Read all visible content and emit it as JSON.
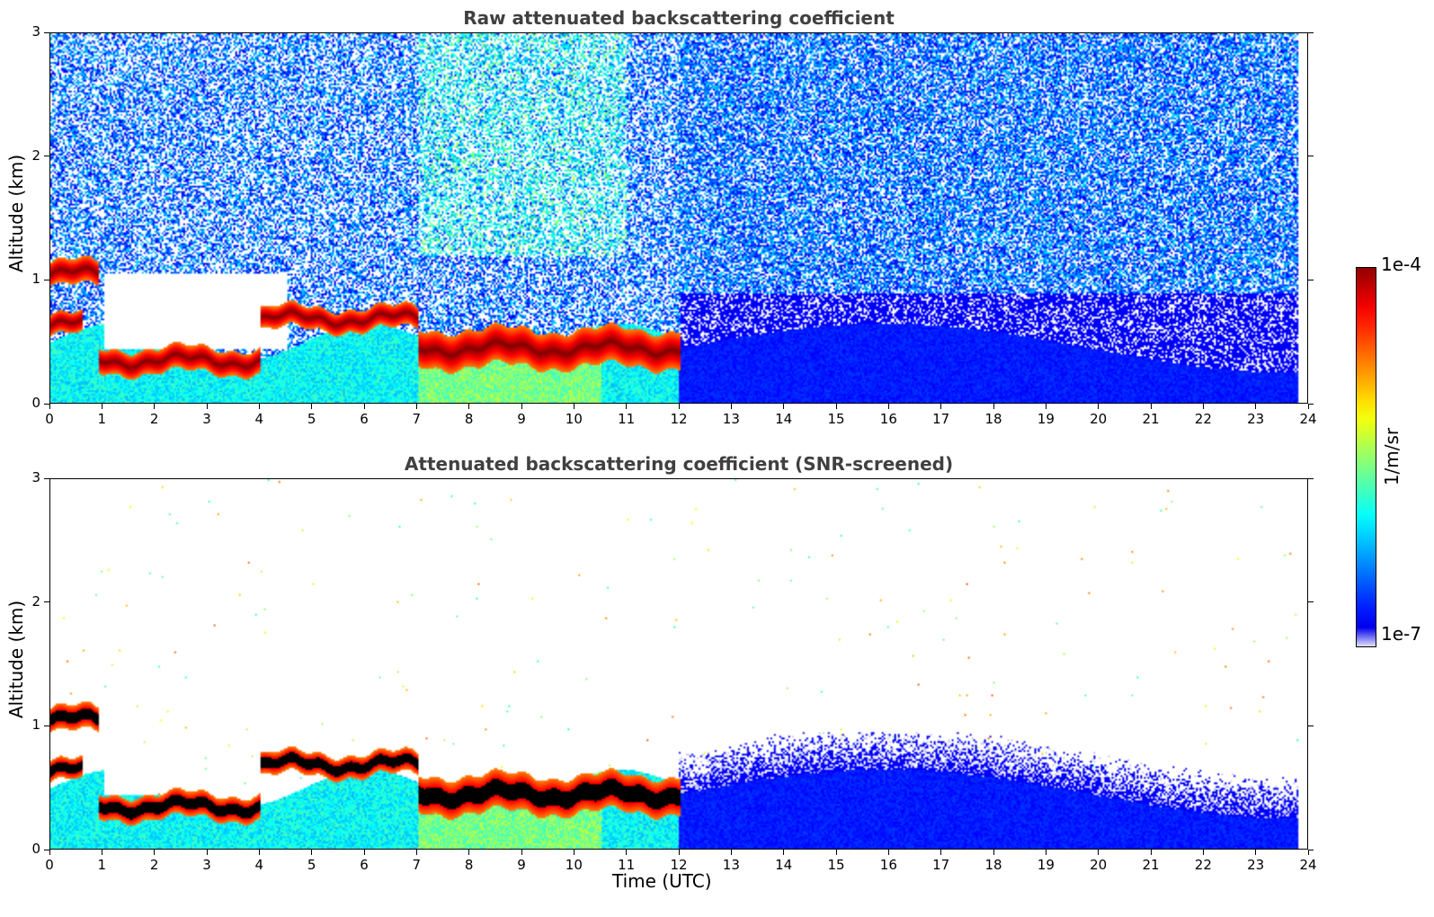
{
  "chart_data": [
    {
      "type": "heatmap",
      "title": "Raw attenuated backscattering coefficient",
      "xlabel": "",
      "ylabel": "Altitude (km)",
      "xlim": [
        0,
        24
      ],
      "ylim": [
        0,
        3
      ],
      "x_ticks": [
        0,
        1,
        2,
        3,
        4,
        5,
        6,
        7,
        8,
        9,
        10,
        11,
        12,
        13,
        14,
        15,
        16,
        17,
        18,
        19,
        20,
        21,
        22,
        23,
        24
      ],
      "y_ticks": [
        0,
        1,
        2,
        3
      ],
      "colormap": "jet",
      "screened": false,
      "cloud_layers_km": [
        {
          "t": [
            0.0,
            0.9
          ],
          "alt": [
            0.95,
            1.15
          ]
        },
        {
          "t": [
            0.0,
            0.6
          ],
          "alt": [
            0.55,
            0.72
          ]
        },
        {
          "t": [
            0.9,
            4.0
          ],
          "alt": [
            0.25,
            0.45
          ]
        },
        {
          "t": [
            4.0,
            7.0
          ],
          "alt": [
            0.6,
            0.78
          ]
        },
        {
          "t": [
            7.0,
            12.0
          ],
          "alt": [
            0.3,
            0.6
          ]
        }
      ]
    },
    {
      "type": "heatmap",
      "title": "Attenuated backscattering coefficient (SNR-screened)",
      "xlabel": "Time (UTC)",
      "ylabel": "Altitude (km)",
      "xlim": [
        0,
        24
      ],
      "ylim": [
        0,
        3
      ],
      "x_ticks": [
        0,
        1,
        2,
        3,
        4,
        5,
        6,
        7,
        8,
        9,
        10,
        11,
        12,
        13,
        14,
        15,
        16,
        17,
        18,
        19,
        20,
        21,
        22,
        23,
        24
      ],
      "y_ticks": [
        0,
        1,
        2,
        3
      ],
      "colormap": "jet",
      "screened": true,
      "cloud_layers_km": [
        {
          "t": [
            0.0,
            0.9
          ],
          "alt": [
            0.95,
            1.15
          ]
        },
        {
          "t": [
            0.0,
            0.6
          ],
          "alt": [
            0.55,
            0.72
          ]
        },
        {
          "t": [
            0.9,
            4.0
          ],
          "alt": [
            0.25,
            0.45
          ]
        },
        {
          "t": [
            4.0,
            7.0
          ],
          "alt": [
            0.6,
            0.78
          ]
        },
        {
          "t": [
            7.0,
            12.0
          ],
          "alt": [
            0.3,
            0.6
          ]
        }
      ]
    }
  ],
  "colorbar": {
    "max_label": "1e-4",
    "min_label": "1e-7",
    "label": "1/m/sr",
    "range": [
      1e-07,
      0.0001
    ],
    "scale": "log"
  }
}
